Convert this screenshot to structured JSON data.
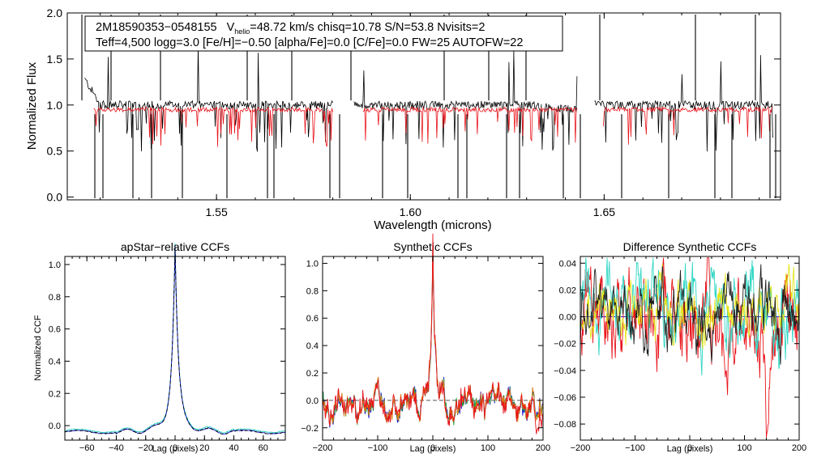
{
  "colors": {
    "observed": "#000000",
    "synthetic": "#e8141b",
    "cyan": "#2fd6c4",
    "blue": "#1a1ad0",
    "green": "#21a83a",
    "orange": "#e07a10",
    "yellow": "#e6e61a",
    "zero_line": "#1a1ad0"
  },
  "chart_data": [
    {
      "type": "line",
      "id": "spectrum",
      "title": "",
      "xlabel": "Wavelength (microns)",
      "ylabel": "Normalized Flux",
      "xlim": [
        1.5115,
        1.6955
      ],
      "ylim": [
        -0.03,
        2.0
      ],
      "xticks": [
        1.55,
        1.6,
        1.65
      ],
      "xtick_labels": [
        "1.55",
        "1.60",
        "1.65"
      ],
      "yticks": [
        0.0,
        0.5,
        1.0,
        1.5,
        2.0
      ],
      "ytick_labels": [
        "0.0",
        "0.5",
        "1.0",
        "1.5",
        "2.0"
      ],
      "chip_gaps": [
        [
          1.58,
          1.5855
        ],
        [
          1.643,
          1.6475
        ]
      ],
      "annotation": {
        "line1_star": "2M18590353−0548155",
        "line1_v": "V",
        "line1_v_sub": "helio",
        "line1_rest": "=48.72 km/s  chisq=10.78  S/N=53.8  Nvisits=2",
        "line2": "Teff=4,500 logg=3.0 [Fe/H]=−0.50 [alpha/Fe]=0.0 [C/Fe]=0.0 FW=25 AUTOFW=22"
      },
      "series": [
        {
          "name": "observed spectrum",
          "color": "#000000",
          "level": 1.0
        },
        {
          "name": "synthetic fit",
          "color": "#e8141b",
          "level": 0.95
        }
      ]
    },
    {
      "type": "line",
      "id": "apstar_ccf",
      "title": "apStar−relative CCFs",
      "xlabel": "Lag (pixels)",
      "ylabel": "Normalized CCF",
      "xlim": [
        -75,
        75
      ],
      "ylim": [
        -0.09,
        1.05
      ],
      "xticks": [
        -60,
        -40,
        -20,
        0,
        20,
        40,
        60
      ],
      "yticks": [
        0.0,
        0.2,
        0.4,
        0.6,
        0.8,
        1.0
      ],
      "ytick_labels": [
        "0.0",
        "0.2",
        "0.4",
        "0.6",
        "0.8",
        "1.0"
      ],
      "peak": {
        "lag": 0,
        "value": 1.0
      },
      "baseline": -0.04,
      "series": [
        {
          "name": "visit CCF (cyan)",
          "color": "#2fd6c4"
        },
        {
          "name": "visit CCF (blue)",
          "color": "#1a1ad0"
        },
        {
          "name": "combined CCF (dashed)",
          "color": "#000000"
        }
      ]
    },
    {
      "type": "line",
      "id": "synthetic_ccf",
      "title": "Synthetic CCFs",
      "xlabel": "Lag (pixels)",
      "ylabel": "",
      "xlim": [
        -200,
        200
      ],
      "ylim": [
        -0.29,
        1.05
      ],
      "xticks": [
        -200,
        -100,
        0,
        100,
        200
      ],
      "yticks": [
        -0.2,
        0.0,
        0.2,
        0.4,
        0.6,
        0.8,
        1.0
      ],
      "ytick_labels": [
        "−0.2",
        "0.0",
        "0.2",
        "0.4",
        "0.6",
        "0.8",
        "1.0"
      ],
      "peak": {
        "lag": 0,
        "value": 1.0
      },
      "zero_line": 0.0,
      "series": [
        {
          "name": "synthetic CCF (blue)",
          "color": "#1a1ad0"
        },
        {
          "name": "synthetic CCF (green)",
          "color": "#21a83a"
        },
        {
          "name": "synthetic CCF (orange)",
          "color": "#e07a10"
        },
        {
          "name": "synthetic CCF (red)",
          "color": "#e8141b"
        }
      ]
    },
    {
      "type": "line",
      "id": "difference_ccf",
      "title": "Difference Synthetic CCFs",
      "xlabel": "Lag (pixels)",
      "ylabel": "",
      "xlim": [
        -200,
        200
      ],
      "ylim": [
        -0.092,
        0.045
      ],
      "xticks": [
        -200,
        -100,
        0,
        100,
        200
      ],
      "yticks": [
        -0.08,
        -0.06,
        -0.04,
        -0.02,
        0.0,
        0.02,
        0.04
      ],
      "ytick_labels": [
        "−0.08",
        "−0.06",
        "−0.04",
        "−0.02",
        "0.00",
        "0.02",
        "0.04"
      ],
      "zero_line": 0.0,
      "min_point": {
        "lag": 140,
        "value": -0.083
      },
      "series": [
        {
          "name": "difference (red)",
          "color": "#e8141b"
        },
        {
          "name": "difference (cyan)",
          "color": "#2fd6c4"
        },
        {
          "name": "difference (yellow)",
          "color": "#e6e61a"
        },
        {
          "name": "difference (dark)",
          "color": "#202020"
        }
      ]
    }
  ]
}
